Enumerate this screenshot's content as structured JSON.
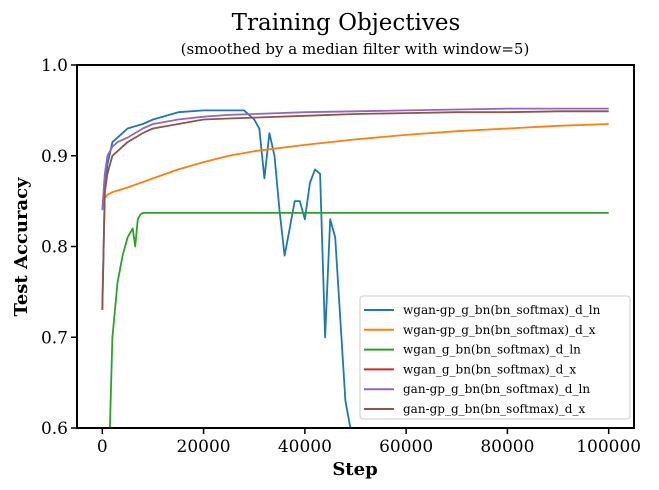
{
  "chart_data": {
    "type": "line",
    "title": "Training Objectives",
    "subtitle": "(smoothed by a median filter with window=5)",
    "xlabel": "Step",
    "ylabel": "Test Accuracy",
    "xlim": [
      -5000,
      105000
    ],
    "ylim": [
      0.6,
      1.0
    ],
    "xticks": [
      0,
      20000,
      40000,
      60000,
      80000,
      100000
    ],
    "xtick_labels": [
      "0",
      "20000",
      "40000",
      "60000",
      "80000",
      "100000"
    ],
    "yticks": [
      0.6,
      0.7,
      0.8,
      0.9,
      1.0
    ],
    "ytick_labels": [
      "0.6",
      "0.7",
      "0.8",
      "0.9",
      "1.0"
    ],
    "grid": false,
    "legend_position": "lower-right",
    "series": [
      {
        "name": "wgan-gp_g_bn(bn_softmax)_d_ln",
        "color": "#1f77b4",
        "x": [
          0,
          500,
          1000,
          2000,
          3000,
          5000,
          8000,
          10000,
          15000,
          20000,
          25000,
          28000,
          30000,
          31000,
          32000,
          33000,
          34000,
          35000,
          36000,
          37000,
          38000,
          39000,
          40000,
          41000,
          42000,
          43000,
          44000,
          45000,
          46000,
          47000,
          48000,
          49000
        ],
        "y": [
          0.73,
          0.86,
          0.89,
          0.915,
          0.92,
          0.93,
          0.935,
          0.94,
          0.948,
          0.95,
          0.95,
          0.95,
          0.94,
          0.93,
          0.875,
          0.925,
          0.9,
          0.84,
          0.79,
          0.82,
          0.85,
          0.85,
          0.83,
          0.87,
          0.885,
          0.88,
          0.7,
          0.83,
          0.81,
          0.72,
          0.63,
          0.6
        ]
      },
      {
        "name": "wgan-gp_g_bn(bn_softmax)_d_x",
        "color": "#ff7f0e",
        "x": [
          0,
          1000,
          2000,
          5000,
          10000,
          15000,
          20000,
          25000,
          30000,
          40000,
          50000,
          60000,
          70000,
          80000,
          90000,
          100000
        ],
        "y": [
          0.85,
          0.857,
          0.86,
          0.865,
          0.875,
          0.885,
          0.893,
          0.9,
          0.905,
          0.912,
          0.918,
          0.923,
          0.927,
          0.93,
          0.933,
          0.935
        ]
      },
      {
        "name": "wgan_g_bn(bn_softmax)_d_ln",
        "color": "#2ca02c",
        "x": [
          1500,
          2000,
          3000,
          4000,
          5000,
          6000,
          6500,
          7000,
          7500,
          8000,
          10000,
          20000,
          40000,
          60000,
          80000,
          100000
        ],
        "y": [
          0.6,
          0.7,
          0.76,
          0.79,
          0.81,
          0.82,
          0.8,
          0.83,
          0.835,
          0.837,
          0.837,
          0.837,
          0.837,
          0.837,
          0.837,
          0.837
        ]
      },
      {
        "name": "wgan_g_bn(bn_softmax)_d_x",
        "color": "#d62728",
        "x": [],
        "y": []
      },
      {
        "name": "gan-gp_g_bn(bn_softmax)_d_ln",
        "color": "#9467bd",
        "x": [
          0,
          500,
          1000,
          2000,
          3000,
          5000,
          8000,
          10000,
          15000,
          20000,
          25000,
          30000,
          40000,
          50000,
          60000,
          70000,
          80000,
          90000,
          100000
        ],
        "y": [
          0.84,
          0.88,
          0.9,
          0.91,
          0.915,
          0.92,
          0.93,
          0.935,
          0.94,
          0.943,
          0.945,
          0.946,
          0.948,
          0.949,
          0.95,
          0.951,
          0.952,
          0.952,
          0.952
        ]
      },
      {
        "name": "gan-gp_g_bn(bn_softmax)_d_x",
        "color": "#8c564b",
        "x": [
          0,
          500,
          1000,
          2000,
          3000,
          5000,
          8000,
          10000,
          15000,
          20000,
          25000,
          30000,
          40000,
          50000,
          60000,
          70000,
          80000,
          90000,
          100000
        ],
        "y": [
          0.73,
          0.86,
          0.88,
          0.9,
          0.905,
          0.915,
          0.925,
          0.93,
          0.935,
          0.94,
          0.941,
          0.942,
          0.944,
          0.946,
          0.947,
          0.948,
          0.948,
          0.949,
          0.949
        ]
      }
    ]
  }
}
